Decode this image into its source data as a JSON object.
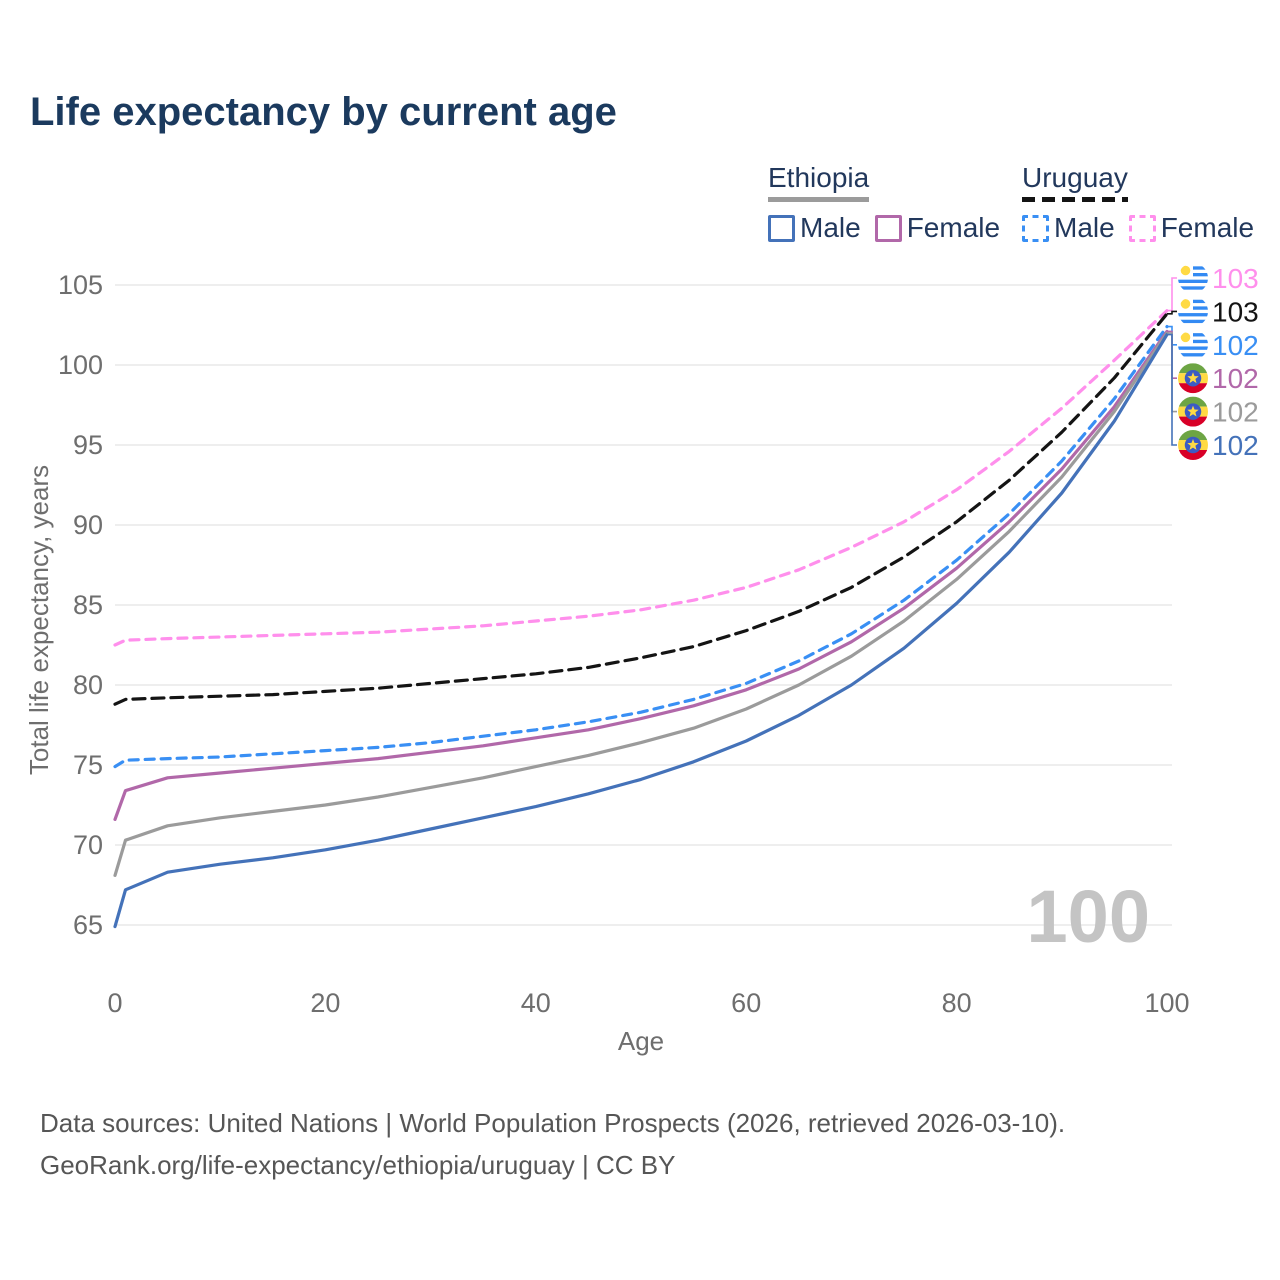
{
  "title": "Life expectancy by current age",
  "legend": {
    "groups": [
      {
        "title": "Ethiopia",
        "line_style": "solid",
        "swatch_color": "#9b9b9b",
        "items": [
          {
            "label": "Male",
            "color": "#4472b9",
            "dashed": false
          },
          {
            "label": "Female",
            "color": "#b168a9",
            "dashed": false
          }
        ]
      },
      {
        "title": "Uruguay",
        "line_style": "dashed",
        "swatch_color": "#141414",
        "items": [
          {
            "label": "Male",
            "color": "#398ff4",
            "dashed": true
          },
          {
            "label": "Female",
            "color": "#ff8fec",
            "dashed": true
          }
        ]
      }
    ]
  },
  "chart_data": {
    "type": "line",
    "title": "Life expectancy by current age",
    "xlabel": "Age",
    "ylabel": "Total life expectancy, years",
    "xlim": [
      0,
      100
    ],
    "ylim": [
      65,
      105
    ],
    "x_ticks": [
      0,
      20,
      40,
      60,
      80,
      100
    ],
    "y_ticks": [
      65,
      70,
      75,
      80,
      85,
      90,
      95,
      100,
      105
    ],
    "grid": "horizontal",
    "legend_position": "top-right",
    "watermark": "100",
    "x": [
      0,
      1,
      5,
      10,
      15,
      20,
      25,
      30,
      35,
      40,
      45,
      50,
      55,
      60,
      65,
      70,
      75,
      80,
      85,
      90,
      95,
      100
    ],
    "series": [
      {
        "name": "Uruguay Female",
        "country": "Uruguay",
        "sex": "Female",
        "color": "#ff8fec",
        "dashed": true,
        "flag": "uruguay",
        "end_label": "103",
        "values": [
          82.5,
          82.8,
          82.9,
          83.0,
          83.1,
          83.2,
          83.3,
          83.5,
          83.7,
          84.0,
          84.3,
          84.7,
          85.3,
          86.1,
          87.2,
          88.6,
          90.2,
          92.2,
          94.6,
          97.3,
          100.3,
          103.4
        ]
      },
      {
        "name": "Uruguay Both sexes",
        "country": "Uruguay",
        "sex": "Both sexes",
        "color": "#141414",
        "dashed": true,
        "flag": "uruguay",
        "end_label": "103",
        "values": [
          78.8,
          79.1,
          79.2,
          79.3,
          79.4,
          79.6,
          79.8,
          80.1,
          80.4,
          80.7,
          81.1,
          81.7,
          82.4,
          83.4,
          84.6,
          86.1,
          88.0,
          90.2,
          92.8,
          95.8,
          99.2,
          103.2
        ]
      },
      {
        "name": "Uruguay Male",
        "country": "Uruguay",
        "sex": "Male",
        "color": "#398ff4",
        "dashed": true,
        "flag": "uruguay",
        "end_label": "102",
        "values": [
          74.9,
          75.3,
          75.4,
          75.5,
          75.7,
          75.9,
          76.1,
          76.4,
          76.8,
          77.2,
          77.7,
          78.3,
          79.1,
          80.1,
          81.5,
          83.2,
          85.3,
          87.8,
          90.7,
          94.0,
          97.9,
          102.4
        ]
      },
      {
        "name": "Ethiopia Female",
        "country": "Ethiopia",
        "sex": "Female",
        "color": "#b168a9",
        "dashed": false,
        "flag": "ethiopia",
        "end_label": "102",
        "values": [
          71.6,
          73.4,
          74.2,
          74.5,
          74.8,
          75.1,
          75.4,
          75.8,
          76.2,
          76.7,
          77.2,
          77.9,
          78.7,
          79.7,
          81.0,
          82.7,
          84.8,
          87.3,
          90.2,
          93.5,
          97.4,
          102.1
        ]
      },
      {
        "name": "Ethiopia Both sexes",
        "country": "Ethiopia",
        "sex": "Both sexes",
        "color": "#9b9b9b",
        "dashed": false,
        "flag": "ethiopia",
        "end_label": "102",
        "values": [
          68.1,
          70.3,
          71.2,
          71.7,
          72.1,
          72.5,
          73.0,
          73.6,
          74.2,
          74.9,
          75.6,
          76.4,
          77.3,
          78.5,
          80.0,
          81.8,
          84.0,
          86.6,
          89.6,
          93.0,
          97.1,
          102.0
        ]
      },
      {
        "name": "Ethiopia Male",
        "country": "Ethiopia",
        "sex": "Male",
        "color": "#4472b9",
        "dashed": false,
        "flag": "ethiopia",
        "end_label": "102",
        "values": [
          64.9,
          67.2,
          68.3,
          68.8,
          69.2,
          69.7,
          70.3,
          71.0,
          71.7,
          72.4,
          73.2,
          74.1,
          75.2,
          76.5,
          78.1,
          80.0,
          82.3,
          85.1,
          88.3,
          92.0,
          96.5,
          101.9
        ]
      }
    ]
  },
  "footer": {
    "line1": "Data sources: United Nations | World Population Prospects (2026, retrieved 2026-03-10).",
    "line2": "GeoRank.org/life-expectancy/ethiopia/uruguay | CC BY"
  }
}
